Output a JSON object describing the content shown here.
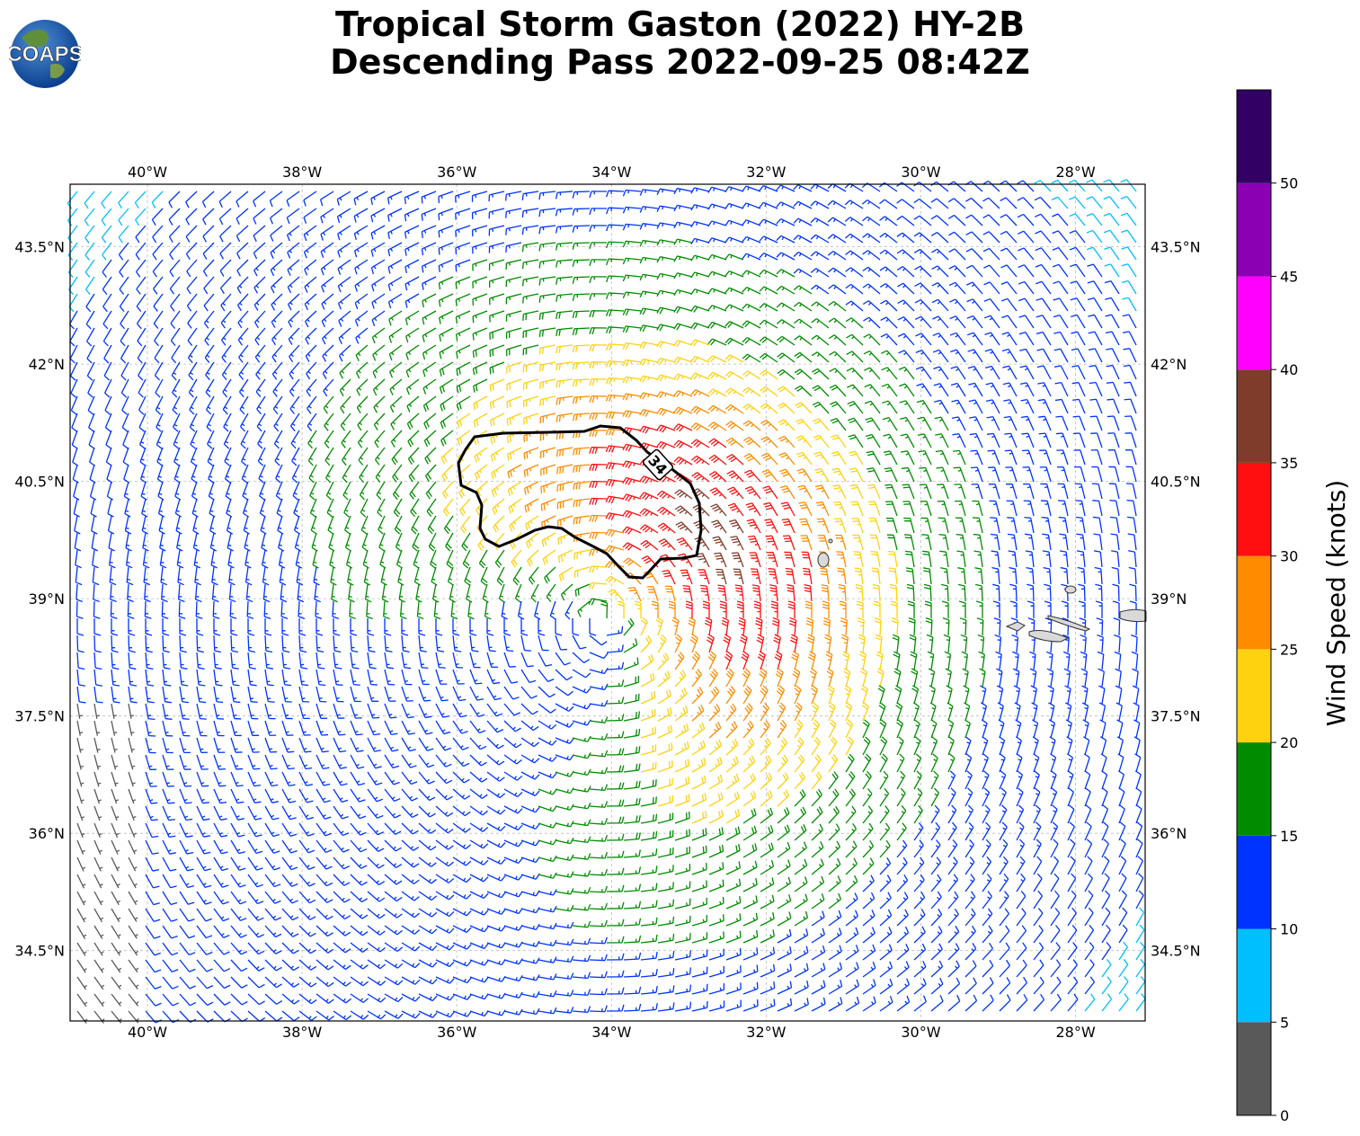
{
  "title": {
    "line1": "Tropical Storm Gaston (2022) HY-2B",
    "line2": "Descending Pass 2022-09-25 08:42Z"
  },
  "logo": {
    "text": "COAPS",
    "icon": "globe-logo"
  },
  "map": {
    "lon_range": [
      -41,
      -27.1
    ],
    "lat_range": [
      33.6,
      44.3
    ],
    "lon_ticks": [
      "40°W",
      "38°W",
      "36°W",
      "34°W",
      "32°W",
      "30°W",
      "28°W"
    ],
    "lon_values": [
      -40,
      -38,
      -36,
      -34,
      -32,
      -30,
      -28
    ],
    "lat_ticks": [
      "43.5°N",
      "42°N",
      "40.5°N",
      "39°N",
      "37.5°N",
      "36°N",
      "34.5°N"
    ],
    "lat_values": [
      43.5,
      42,
      40.5,
      39,
      37.5,
      36,
      34.5
    ],
    "grid": true,
    "storm_center": {
      "lon": -34.1,
      "lat": 38.75
    },
    "contour_label": "34",
    "contour_value_knots": 34
  },
  "colorbar": {
    "label": "Wind Speed (knots)",
    "ticks": [
      "0",
      "5",
      "10",
      "15",
      "20",
      "25",
      "30",
      "35",
      "40",
      "45",
      "50"
    ],
    "bins": [
      {
        "min": 0,
        "max": 5,
        "color": "#595959"
      },
      {
        "min": 5,
        "max": 10,
        "color": "#00bfff"
      },
      {
        "min": 10,
        "max": 15,
        "color": "#0033ff"
      },
      {
        "min": 15,
        "max": 20,
        "color": "#008c00"
      },
      {
        "min": 20,
        "max": 25,
        "color": "#ffd20f"
      },
      {
        "min": 25,
        "max": 30,
        "color": "#ff8c00"
      },
      {
        "min": 30,
        "max": 35,
        "color": "#ff0f0f"
      },
      {
        "min": 35,
        "max": 40,
        "color": "#803c2b"
      },
      {
        "min": 40,
        "max": 45,
        "color": "#ff00ff"
      },
      {
        "min": 45,
        "max": 50,
        "color": "#8c00b3"
      },
      {
        "min": 50,
        "max": 55,
        "color": "#320064"
      }
    ]
  }
}
